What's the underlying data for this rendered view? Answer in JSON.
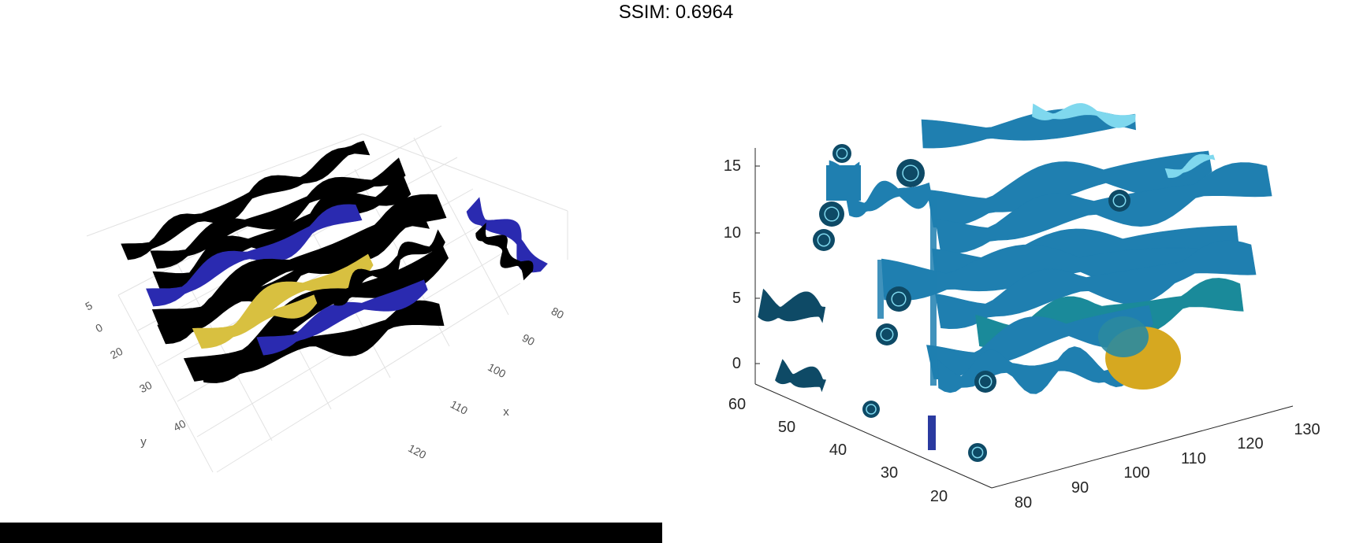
{
  "figure": {
    "title": "SSIM: 0.6964"
  },
  "colors": {
    "left_ribbon": "#000000",
    "left_accent_blue": "#2a2ab0",
    "left_accent_yellow": "#d8c040",
    "right_ribbon": "#1f7fb0",
    "right_dark": "#0e4a66",
    "right_highlight": "#7fd8ee",
    "right_yellow": "#d6a820",
    "bar": "#000000"
  },
  "chart_data": [
    {
      "type": "3d-streamribbon",
      "panel": "left",
      "title": "",
      "xlabel": "x",
      "ylabel": "y",
      "zlabel": "",
      "x_ticks": [
        "80",
        "90",
        "100",
        "110",
        "120"
      ],
      "y_ticks": [
        "20",
        "30",
        "40"
      ],
      "z_ticks": [
        "5",
        "0"
      ],
      "grid": true,
      "colormap": "dark-to-parula"
    },
    {
      "type": "3d-streamribbon",
      "panel": "right",
      "title": "",
      "xlabel": "",
      "ylabel": "",
      "zlabel": "",
      "x_ticks": [
        "80",
        "90",
        "100",
        "110",
        "120",
        "130"
      ],
      "y_ticks": [
        "60",
        "50",
        "40",
        "30",
        "20"
      ],
      "z_ticks": [
        "15",
        "10",
        "5",
        "0"
      ],
      "grid": false,
      "colormap": "parula"
    }
  ]
}
